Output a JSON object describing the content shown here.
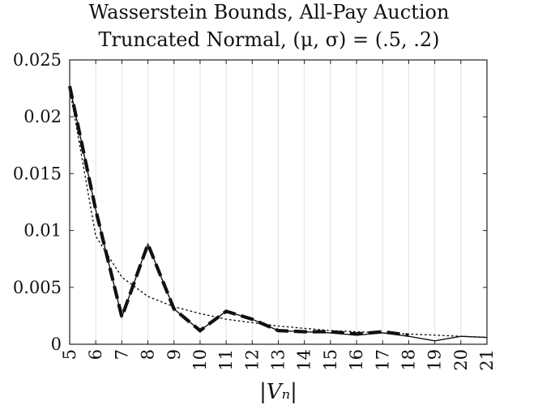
{
  "chart_data": {
    "type": "line",
    "title": "Wasserstein Bounds, All-Pay Auction",
    "subtitle": "Truncated Normal, (μ, σ) = (.5, .2)",
    "xlabel": "|Vₙ|",
    "ylabel": "",
    "xlim": [
      5,
      21
    ],
    "ylim": [
      0,
      0.025
    ],
    "x_ticks": [
      5,
      6,
      7,
      8,
      9,
      10,
      11,
      12,
      13,
      14,
      15,
      16,
      17,
      18,
      19,
      20,
      21
    ],
    "y_ticks": [
      0,
      0.005,
      0.01,
      0.015,
      0.02,
      0.025
    ],
    "y_tick_labels": [
      "0",
      "0.005",
      "0.01",
      "0.015",
      "0.02",
      "0.025"
    ],
    "grid": "vertical",
    "x": [
      5,
      6,
      7,
      8,
      9,
      10,
      11,
      12,
      13,
      14,
      15,
      16,
      17,
      18,
      19,
      20,
      21
    ],
    "series": [
      {
        "style": "solid-thin",
        "values": [
          0.0227,
          0.0118,
          0.0024,
          0.0088,
          0.0031,
          0.0012,
          0.0029,
          0.0022,
          0.0012,
          0.0011,
          0.001,
          0.0008,
          0.001,
          0.0007,
          0.0003,
          0.0007,
          0.0006
        ]
      },
      {
        "style": "dashed-thick",
        "values": [
          0.0227,
          0.0118,
          0.0024,
          0.0088,
          0.0031,
          0.0012,
          0.0029,
          0.0022,
          0.0012,
          0.0011,
          0.0011,
          0.0009,
          0.0011,
          0.0008,
          null,
          null,
          null
        ]
      },
      {
        "style": "dotted",
        "values": [
          0.0225,
          0.0095,
          0.0059,
          0.0042,
          0.0033,
          0.0027,
          0.0022,
          0.0019,
          0.0016,
          0.0014,
          0.0012,
          0.0011,
          0.001,
          0.0009,
          0.0008,
          0.0007,
          0.0006
        ]
      }
    ]
  }
}
